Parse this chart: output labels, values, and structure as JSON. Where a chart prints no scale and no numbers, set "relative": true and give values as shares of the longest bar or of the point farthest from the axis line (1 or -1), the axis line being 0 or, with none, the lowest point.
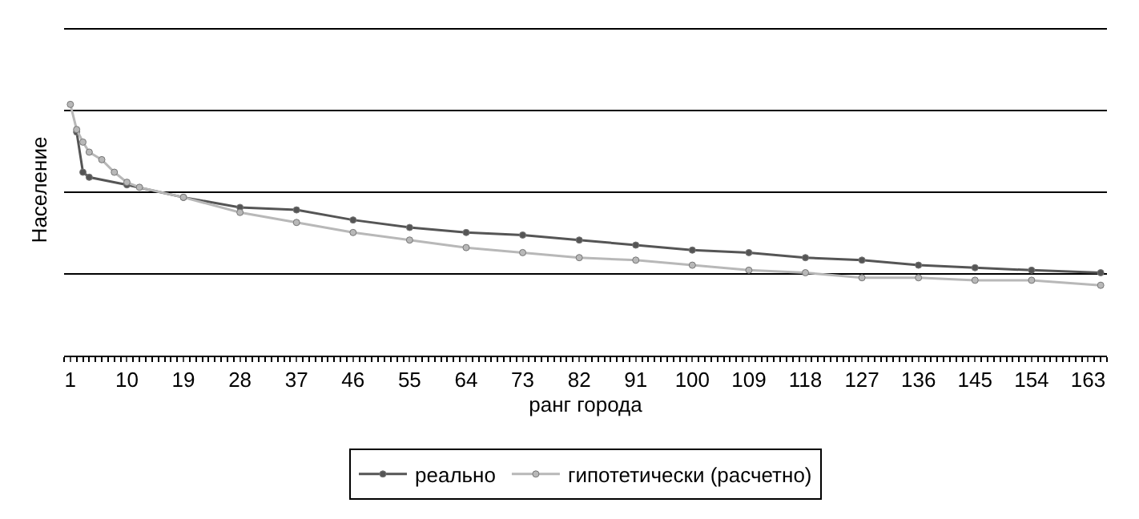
{
  "chart_data": {
    "type": "line",
    "relative": true,
    "xlabel": "ранг города",
    "ylabel": "Население",
    "xlim": [
      0,
      166
    ],
    "xticks": [
      1,
      10,
      19,
      28,
      37,
      46,
      55,
      64,
      73,
      82,
      91,
      100,
      109,
      118,
      127,
      136,
      145,
      154,
      163
    ],
    "grid": "y",
    "legend": "bottom",
    "marker": "circle",
    "line_style": "solid",
    "series": [
      {
        "name": "реально",
        "color": "#555555",
        "x": [
          2,
          3,
          4,
          10,
          19,
          28,
          37,
          46,
          55,
          64,
          73,
          82,
          91,
          100,
          109,
          118,
          127,
          136,
          145,
          154,
          165
        ],
        "values": [
          0.89,
          0.73,
          0.71,
          0.68,
          0.63,
          0.59,
          0.58,
          0.54,
          0.51,
          0.49,
          0.48,
          0.46,
          0.44,
          0.42,
          0.41,
          0.39,
          0.38,
          0.36,
          0.35,
          0.34,
          0.33
        ]
      },
      {
        "name": "гипотетически (расчетно)",
        "color": "#b8b8b8",
        "x": [
          1,
          2,
          3,
          4,
          6,
          8,
          10,
          12,
          19,
          28,
          37,
          46,
          55,
          64,
          73,
          82,
          91,
          100,
          109,
          118,
          127,
          136,
          145,
          154,
          165
        ],
        "values": [
          1.0,
          0.9,
          0.85,
          0.81,
          0.78,
          0.73,
          0.69,
          0.67,
          0.63,
          0.57,
          0.53,
          0.49,
          0.46,
          0.43,
          0.41,
          0.39,
          0.38,
          0.36,
          0.34,
          0.33,
          0.31,
          0.31,
          0.3,
          0.3,
          0.28
        ]
      }
    ]
  }
}
